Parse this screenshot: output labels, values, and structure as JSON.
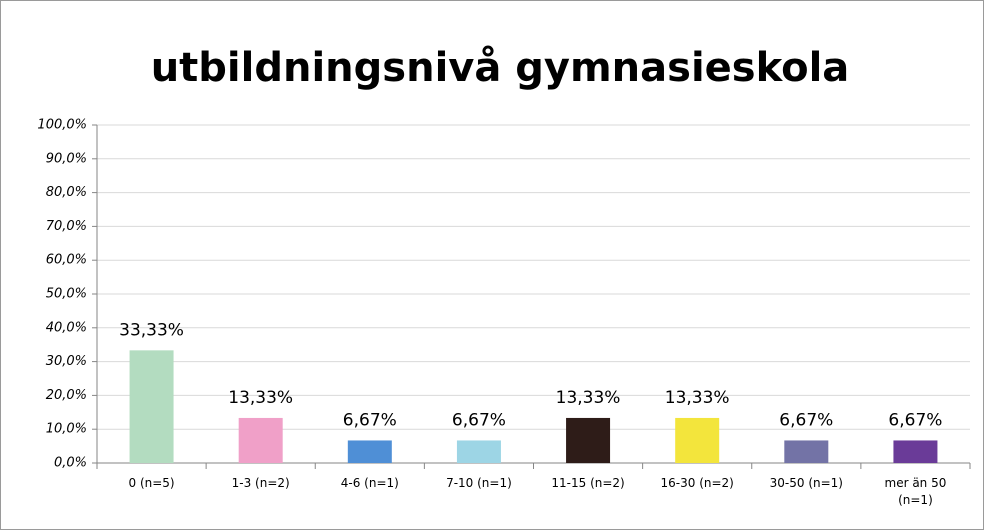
{
  "chart_data": {
    "type": "bar",
    "title": "utbildningsnivå gymnasieskola",
    "categories": [
      "0 (n=5)",
      "1-3 (n=2)",
      "4-6 (n=1)",
      "7-10 (n=1)",
      "11-15 (n=2)",
      "16-30 (n=2)",
      "30-50 (n=1)",
      "mer än 50 (n=1)"
    ],
    "values": [
      33.33,
      13.33,
      6.67,
      6.67,
      13.33,
      13.33,
      6.67,
      6.67
    ],
    "value_labels": [
      "33,33%",
      "13,33%",
      "6,67%",
      "6,67%",
      "13,33%",
      "13,33%",
      "6,67%",
      "6,67%"
    ],
    "colors": [
      "#b3dcc0",
      "#f0a0c8",
      "#4f8fd6",
      "#9dd5e5",
      "#2e1c18",
      "#f3e53c",
      "#7373a6",
      "#6a3b98"
    ],
    "ylim": [
      0,
      100
    ],
    "yticks": [
      {
        "value": 0,
        "label": "0,0%"
      },
      {
        "value": 10,
        "label": "10,0%"
      },
      {
        "value": 20,
        "label": "20,0%"
      },
      {
        "value": 30,
        "label": "30,0%"
      },
      {
        "value": 40,
        "label": "40,0%"
      },
      {
        "value": 50,
        "label": "50,0%"
      },
      {
        "value": 60,
        "label": "60,0%"
      },
      {
        "value": 70,
        "label": "70,0%"
      },
      {
        "value": 80,
        "label": "80,0%"
      },
      {
        "value": 90,
        "label": "90,0%"
      },
      {
        "value": 100,
        "label": "100,0%"
      }
    ],
    "grid": true
  }
}
